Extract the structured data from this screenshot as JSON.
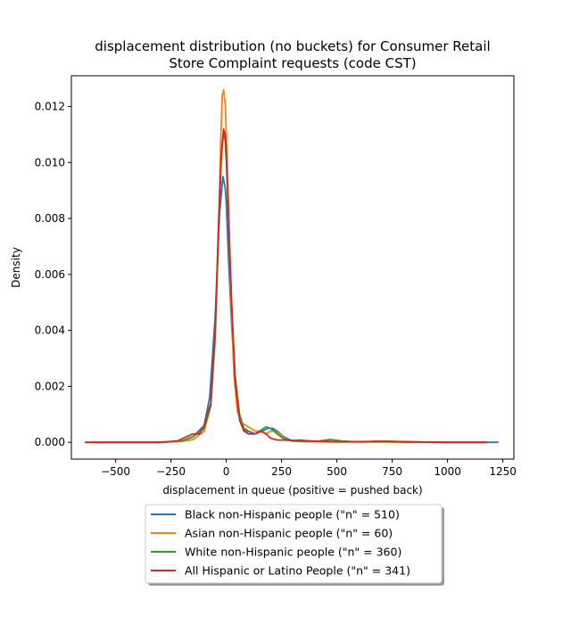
{
  "chart_data": {
    "type": "line",
    "title_lines": [
      "displacement distribution (no buckets)  for Consumer Retail",
      "Store Complaint requests (code CST)"
    ],
    "xlabel": "displacement in queue (positive = pushed back)",
    "ylabel": "Density",
    "xlim": [
      -700,
      1300
    ],
    "ylim": [
      -0.0006,
      0.0131
    ],
    "xticks": [
      -500,
      -250,
      0,
      250,
      500,
      750,
      1000,
      1250
    ],
    "xtick_labels": [
      "−500",
      "−250",
      "0",
      "250",
      "500",
      "750",
      "1000",
      "1250"
    ],
    "yticks": [
      0.0,
      0.002,
      0.004,
      0.006,
      0.008,
      0.01,
      0.012
    ],
    "ytick_labels": [
      "0.000",
      "0.002",
      "0.004",
      "0.006",
      "0.008",
      "0.010",
      "0.012"
    ],
    "legend_position": "below",
    "series": [
      {
        "name": "Black non-Hispanic people (\"n\" = 510)",
        "color": "#1f77b4",
        "x": [
          -620,
          -300,
          -200,
          -150,
          -100,
          -75,
          -50,
          -30,
          -15,
          -5,
          0,
          10,
          25,
          40,
          60,
          80,
          100,
          130,
          160,
          190,
          210,
          230,
          260,
          290,
          320,
          400,
          500,
          600,
          700,
          750,
          800,
          900,
          1000,
          1100,
          1230
        ],
        "y": [
          0,
          0,
          5e-05,
          0.0002,
          0.0006,
          0.0016,
          0.0045,
          0.0082,
          0.0095,
          0.0091,
          0.0086,
          0.0066,
          0.0041,
          0.0021,
          0.0009,
          0.0005,
          0.0004,
          0.0003,
          0.0004,
          0.0005,
          0.0005,
          0.0004,
          0.0002,
          8e-05,
          5e-05,
          4e-05,
          3e-05,
          2e-05,
          3e-05,
          3e-05,
          2e-05,
          1e-05,
          0,
          0,
          0
        ]
      },
      {
        "name": "Asian non-Hispanic people (\"n\" = 60)",
        "color": "#ff7f0e",
        "x": [
          -580,
          -300,
          -200,
          -150,
          -100,
          -70,
          -50,
          -35,
          -25,
          -18,
          -12,
          -5,
          0,
          10,
          20,
          35,
          50,
          70,
          90,
          110,
          130,
          150,
          180,
          200,
          220,
          240,
          270,
          300,
          400,
          500,
          600,
          700,
          800,
          1000,
          1180
        ],
        "y": [
          0,
          0,
          3e-05,
          0.0001,
          0.0004,
          0.0013,
          0.0037,
          0.0075,
          0.0108,
          0.0124,
          0.0126,
          0.0121,
          0.0111,
          0.0084,
          0.0054,
          0.0024,
          0.0011,
          0.0007,
          0.0006,
          0.0005,
          0.0004,
          0.0004,
          0.0003,
          0.0004,
          0.0004,
          0.0003,
          0.0001,
          4e-05,
          2e-05,
          1e-05,
          1e-05,
          1e-05,
          0,
          0,
          0
        ]
      },
      {
        "name": "White non-Hispanic people (\"n\" = 360)",
        "color": "#2ca02c",
        "x": [
          -600,
          -300,
          -200,
          -150,
          -100,
          -70,
          -50,
          -35,
          -22,
          -12,
          -5,
          0,
          10,
          25,
          40,
          60,
          80,
          100,
          130,
          160,
          180,
          200,
          230,
          260,
          300,
          350,
          420,
          470,
          520,
          580,
          700,
          760,
          820,
          1000,
          1180
        ],
        "y": [
          0,
          0,
          5e-05,
          0.0002,
          0.0005,
          0.0013,
          0.0038,
          0.0075,
          0.0102,
          0.0111,
          0.0108,
          0.0101,
          0.008,
          0.0048,
          0.0024,
          0.001,
          0.0005,
          0.0003,
          0.0003,
          0.00045,
          0.00055,
          0.0005,
          0.0003,
          0.00012,
          5e-05,
          2e-05,
          5e-05,
          0.0001,
          5e-05,
          2e-05,
          2e-05,
          3e-05,
          1e-05,
          0,
          0
        ]
      },
      {
        "name": "All Hispanic or Latino People (\"n\" = 341)",
        "color": "#d62728",
        "x": [
          -640,
          -300,
          -220,
          -180,
          -150,
          -120,
          -100,
          -70,
          -50,
          -35,
          -22,
          -12,
          -5,
          0,
          10,
          25,
          40,
          60,
          80,
          100,
          130,
          160,
          180,
          200,
          230,
          260,
          300,
          330,
          360,
          400,
          500,
          600,
          700,
          760,
          820,
          900,
          1000,
          1180
        ],
        "y": [
          0,
          0,
          5e-05,
          0.0002,
          0.0003,
          0.0003,
          0.0006,
          0.0014,
          0.004,
          0.0078,
          0.0103,
          0.0112,
          0.011,
          0.0104,
          0.0082,
          0.0048,
          0.0022,
          0.0008,
          0.0004,
          0.0003,
          0.0003,
          0.0004,
          0.0003,
          0.00015,
          8e-05,
          8e-05,
          6e-05,
          8e-05,
          6e-05,
          4e-05,
          2e-05,
          2e-05,
          4e-05,
          3e-05,
          2e-05,
          1e-05,
          0,
          0
        ]
      }
    ]
  }
}
